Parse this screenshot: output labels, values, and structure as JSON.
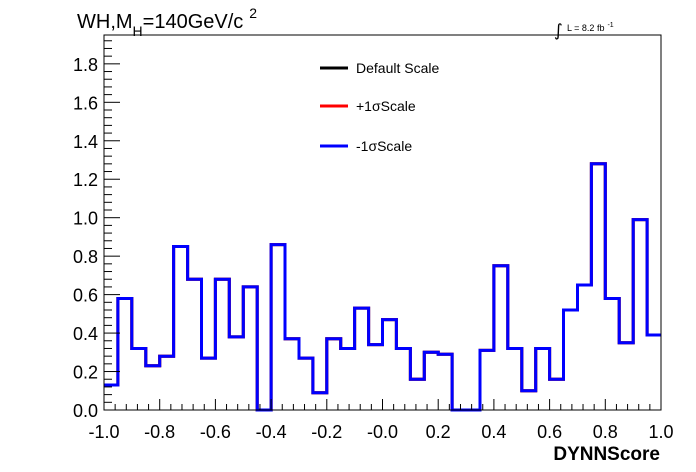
{
  "chart_data": {
    "type": "line",
    "title": {
      "main": "WH,M",
      "subscript": "H",
      "rest": "=140GeV/c",
      "superscript": "2"
    },
    "lumi": {
      "symbol": "∫",
      "text": "L = 8.2 fb",
      "superscript": "-1"
    },
    "xlabel": "DYNNScore",
    "ylabel": "",
    "xlim": [
      -1.0,
      1.0
    ],
    "ylim": [
      0.0,
      1.95
    ],
    "x_ticks": [
      "-1.0",
      "-0.8",
      "-0.6",
      "-0.4",
      "-0.2",
      "-0.0",
      "0.2",
      "0.4",
      "0.6",
      "0.8",
      "1.0"
    ],
    "y_ticks": [
      "0.0",
      "0.2",
      "0.4",
      "0.6",
      "0.8",
      "1.0",
      "1.2",
      "1.4",
      "1.6",
      "1.8"
    ],
    "bin_edges_start": -1.0,
    "bin_width": 0.05,
    "legend_position": "top-center",
    "series": [
      {
        "name": "Default Scale",
        "color": "#000000",
        "values": [
          0.13,
          0.58,
          0.32,
          0.23,
          0.28,
          0.85,
          0.68,
          0.27,
          0.68,
          0.38,
          0.64,
          0.0,
          0.86,
          0.37,
          0.27,
          0.09,
          0.37,
          0.32,
          0.53,
          0.34,
          0.47,
          0.32,
          0.16,
          0.3,
          0.29,
          0.0,
          0.0,
          0.31,
          0.75,
          0.32,
          0.1,
          0.32,
          0.16,
          0.52,
          0.65,
          1.28,
          0.58,
          0.35,
          0.99,
          0.39
        ]
      },
      {
        "name": "+1σScale",
        "color": "#ff0000",
        "values": [
          0.13,
          0.58,
          0.32,
          0.23,
          0.28,
          0.85,
          0.68,
          0.27,
          0.68,
          0.38,
          0.64,
          0.0,
          0.86,
          0.37,
          0.27,
          0.09,
          0.37,
          0.32,
          0.53,
          0.34,
          0.47,
          0.32,
          0.16,
          0.3,
          0.29,
          0.0,
          0.0,
          0.31,
          0.75,
          0.32,
          0.1,
          0.32,
          0.16,
          0.52,
          0.65,
          1.28,
          0.58,
          0.35,
          0.99,
          0.39
        ]
      },
      {
        "name": "-1σScale",
        "color": "#0000ff",
        "values": [
          0.13,
          0.58,
          0.32,
          0.23,
          0.28,
          0.85,
          0.68,
          0.27,
          0.68,
          0.38,
          0.64,
          0.0,
          0.86,
          0.37,
          0.27,
          0.09,
          0.37,
          0.32,
          0.53,
          0.34,
          0.47,
          0.32,
          0.16,
          0.3,
          0.29,
          0.0,
          0.0,
          0.31,
          0.75,
          0.32,
          0.1,
          0.32,
          0.16,
          0.52,
          0.65,
          1.28,
          0.58,
          0.35,
          0.99,
          0.39
        ]
      }
    ]
  }
}
